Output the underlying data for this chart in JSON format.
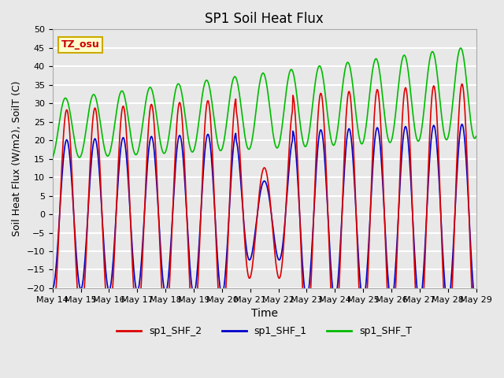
{
  "title": "SP1 Soil Heat Flux",
  "xlabel": "Time",
  "ylabel": "Soil Heat Flux (W/m2), SoilT (C)",
  "ylim": [
    -20,
    50
  ],
  "annotation": "TZ_osu",
  "x_tick_labels": [
    "May 14",
    "May 15",
    "May 16",
    "May 17",
    "May 18",
    "May 19",
    "May 20",
    "May 21",
    "May 22",
    "May 23",
    "May 24",
    "May 25",
    "May 26",
    "May 27",
    "May 28",
    "May 29"
  ],
  "legend_labels": [
    "sp1_SHF_2",
    "sp1_SHF_1",
    "sp1_SHF_T"
  ],
  "color_shf2": "#dd0000",
  "color_shf1": "#0000cc",
  "color_shfT": "#00bb00",
  "bg_color": "#e8e8e8",
  "grid_color": "#ffffff",
  "n_days": 15,
  "points_per_day": 48
}
